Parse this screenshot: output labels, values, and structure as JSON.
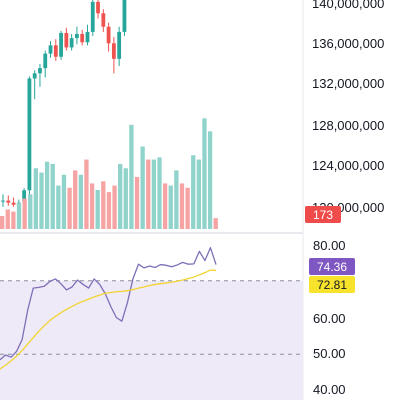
{
  "colors": {
    "up": "#26a69a",
    "down": "#ef5350",
    "up_volume": "#8fd3cb",
    "down_volume": "#f5a3a3",
    "rsi_line": "#7e6fb8",
    "rsi_ma": "#f2d430",
    "rsi_band_fill": "#efeaf7",
    "last_volume_badge": "#f04b4b",
    "rsi_badge": "#7e57c2",
    "rsi_ma_badge": "#f7e22c",
    "separator": "#d1d4dc"
  },
  "price_axis": {
    "ticks": [
      140000000,
      136000000,
      132000000,
      128000000,
      124000000,
      120000000
    ],
    "labels": [
      "140,000,000",
      "136,000,000",
      "132,000,000",
      "128,000,000",
      "124,000,000",
      "120,000,000"
    ]
  },
  "rsi_axis": {
    "ticks": [
      80,
      60,
      50,
      40
    ],
    "labels": [
      "80.00",
      "60.00",
      "50.00",
      "40.00"
    ],
    "upper_band": 70,
    "middle_band": 50,
    "lower_band": 30
  },
  "badges": {
    "last_volume": "173",
    "rsi_value": "74.36",
    "rsi_ma_value": "72.81"
  },
  "chart_data": [
    {
      "type": "candlestick",
      "ylim": [
        119500000,
        140500000
      ],
      "candles": [
        {
          "o": 121000000,
          "h": 121700000,
          "l": 120500000,
          "c": 121100000
        },
        {
          "o": 121100000,
          "h": 121600000,
          "l": 120600000,
          "c": 120900000
        },
        {
          "o": 120900000,
          "h": 121400000,
          "l": 120500000,
          "c": 120700000
        },
        {
          "o": 120700000,
          "h": 121200000,
          "l": 120300000,
          "c": 120900000
        },
        {
          "o": 121000000,
          "h": 122300000,
          "l": 120600000,
          "c": 122100000
        },
        {
          "o": 122100000,
          "h": 133100000,
          "l": 121500000,
          "c": 132900000
        },
        {
          "o": 132900000,
          "h": 133700000,
          "l": 130900000,
          "c": 133400000
        },
        {
          "o": 133400000,
          "h": 134300000,
          "l": 132100000,
          "c": 133900000
        },
        {
          "o": 133900000,
          "h": 135600000,
          "l": 133000000,
          "c": 135300000
        },
        {
          "o": 135300000,
          "h": 136500000,
          "l": 134900000,
          "c": 136100000
        },
        {
          "o": 136100000,
          "h": 136700000,
          "l": 134600000,
          "c": 135000000
        },
        {
          "o": 135000000,
          "h": 137500000,
          "l": 134700000,
          "c": 137300000
        },
        {
          "o": 137300000,
          "h": 137800000,
          "l": 135600000,
          "c": 135900000
        },
        {
          "o": 135900000,
          "h": 137200000,
          "l": 135600000,
          "c": 136800000
        },
        {
          "o": 136800000,
          "h": 137900000,
          "l": 136200000,
          "c": 137200000
        },
        {
          "o": 137200000,
          "h": 137600000,
          "l": 136100000,
          "c": 136400000
        },
        {
          "o": 136400000,
          "h": 138100000,
          "l": 136100000,
          "c": 137400000
        },
        {
          "o": 137400000,
          "h": 140500000,
          "l": 137000000,
          "c": 140300000
        },
        {
          "o": 140300000,
          "h": 140600000,
          "l": 138700000,
          "c": 139200000
        },
        {
          "o": 139200000,
          "h": 139600000,
          "l": 137400000,
          "c": 137900000
        },
        {
          "o": 137900000,
          "h": 138300000,
          "l": 135500000,
          "c": 136300000
        },
        {
          "o": 136300000,
          "h": 136900000,
          "l": 133400000,
          "c": 134800000
        },
        {
          "o": 134800000,
          "h": 137900000,
          "l": 134100000,
          "c": 137400000
        },
        {
          "o": 137400000,
          "h": 140500000,
          "l": 137000000,
          "c": 140500000
        }
      ]
    },
    {
      "type": "bar",
      "name": "volume",
      "values": [
        6,
        9,
        8,
        12,
        14,
        16,
        28,
        26,
        31,
        30,
        20,
        25,
        19,
        27,
        25,
        32,
        21,
        18,
        22,
        17,
        20,
        30,
        28,
        48,
        24,
        38,
        32,
        32,
        33,
        21,
        20,
        27,
        21,
        19,
        34,
        32,
        51,
        45,
        5
      ],
      "down": [
        true,
        true,
        true,
        false,
        true,
        false,
        false,
        false,
        false,
        false,
        false,
        false,
        true,
        true,
        false,
        true,
        true,
        false,
        true,
        true,
        true,
        false,
        false,
        false,
        true,
        false,
        true,
        false,
        false,
        true,
        false,
        false,
        true,
        true,
        false,
        false,
        false,
        false,
        true
      ]
    },
    {
      "type": "line",
      "name": "RSI",
      "ylim": [
        37,
        84
      ],
      "bands": [
        70,
        50
      ],
      "x": [
        0,
        1,
        2,
        3,
        4,
        5,
        6,
        7,
        8,
        9,
        10,
        11,
        12,
        13,
        14,
        15,
        16,
        17,
        18,
        19,
        20,
        21,
        22,
        23,
        24,
        25,
        26,
        27,
        28,
        29,
        30,
        31,
        32,
        33,
        34,
        35,
        36,
        37,
        38,
        39
      ],
      "series": [
        {
          "key": "rsi",
          "values": [
            48.5,
            49.8,
            49.2,
            50.8,
            54,
            62,
            68,
            68.2,
            68.5,
            69.8,
            70.5,
            69.2,
            67.5,
            68.3,
            70.2,
            69,
            68,
            70.5,
            69,
            66.5,
            63,
            60,
            59,
            64,
            70.5,
            74.5,
            73.5,
            74,
            73.6,
            74.4,
            74.2,
            73.8,
            74.3,
            75,
            74.5,
            74.6,
            78,
            75.5,
            79,
            74.4
          ]
        },
        {
          "key": "rsi_ma",
          "values": [
            46,
            47,
            48.2,
            49.5,
            51,
            52.8,
            54.5,
            56.2,
            57.8,
            59.2,
            60.3,
            61.3,
            62.2,
            63,
            63.8,
            64.4,
            65,
            65.6,
            66.1,
            66.6,
            66.8,
            67,
            67.1,
            67.3,
            67.6,
            68,
            68.3,
            68.7,
            69,
            69.2,
            69.4,
            69.6,
            69.9,
            70.2,
            70.6,
            71,
            71.6,
            72.2,
            72.9,
            72.8
          ]
        }
      ]
    }
  ]
}
